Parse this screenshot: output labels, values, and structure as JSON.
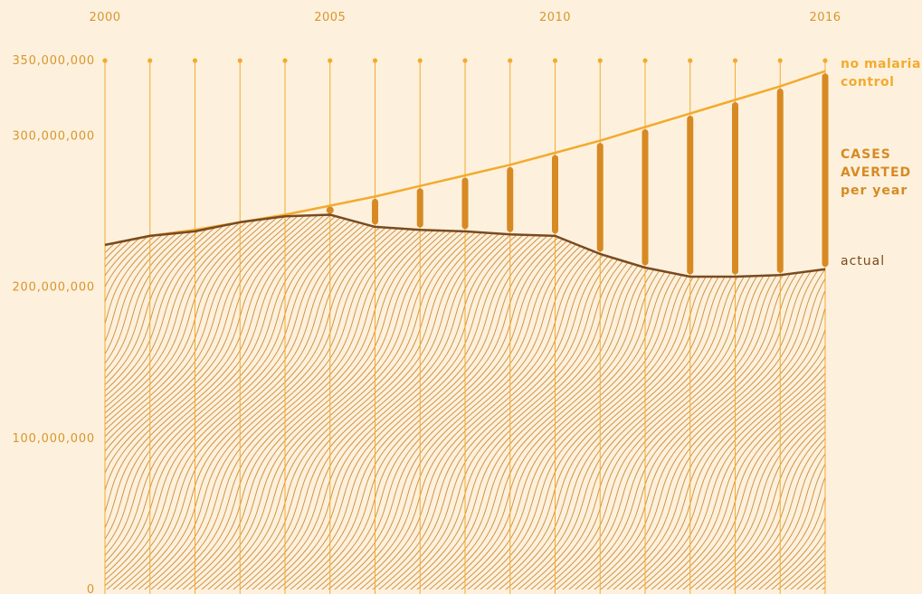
{
  "chart_data": {
    "type": "line",
    "x": [
      2000,
      2001,
      2002,
      2003,
      2004,
      2005,
      2006,
      2007,
      2008,
      2009,
      2010,
      2011,
      2012,
      2013,
      2014,
      2015,
      2016
    ],
    "x_tick_labels": [
      "2000",
      "2005",
      "2010",
      "2016"
    ],
    "y_tick_labels": [
      "350,000,000",
      "300,000,000",
      "200,000,000",
      "100,000,000",
      "0"
    ],
    "y_tick_values": [
      350000000,
      300000000,
      200000000,
      100000000,
      0
    ],
    "ylim": [
      0,
      350000000
    ],
    "series": [
      {
        "name": "no malaria control",
        "values": [
          228000000,
          234000000,
          238000000,
          243000000,
          248000000,
          254000000,
          260000000,
          267000000,
          274000000,
          281000000,
          289000000,
          297000000,
          306000000,
          315000000,
          324000000,
          333000000,
          343000000
        ],
        "color": "#f4aa2e"
      },
      {
        "name": "actual",
        "values": [
          228000000,
          234000000,
          237000000,
          243000000,
          247000000,
          248000000,
          240000000,
          238000000,
          237000000,
          235000000,
          234000000,
          222000000,
          213000000,
          207000000,
          207000000,
          208000000,
          212000000
        ],
        "color": "#7a4a20"
      }
    ],
    "averted_label_line1": "CASES",
    "averted_label_line2": "AVERTED",
    "averted_label_line3": "per year",
    "no_control_label_line1": "no malaria",
    "no_control_label_line2": "control",
    "actual_label": "actual",
    "colors": {
      "background": "#fdf1dd",
      "no_control": "#f4aa2e",
      "averted_bar": "#d78a23",
      "actual": "#7a4a20",
      "hatch": "#c8842e",
      "vertical_lines": "#f4aa2e"
    }
  }
}
